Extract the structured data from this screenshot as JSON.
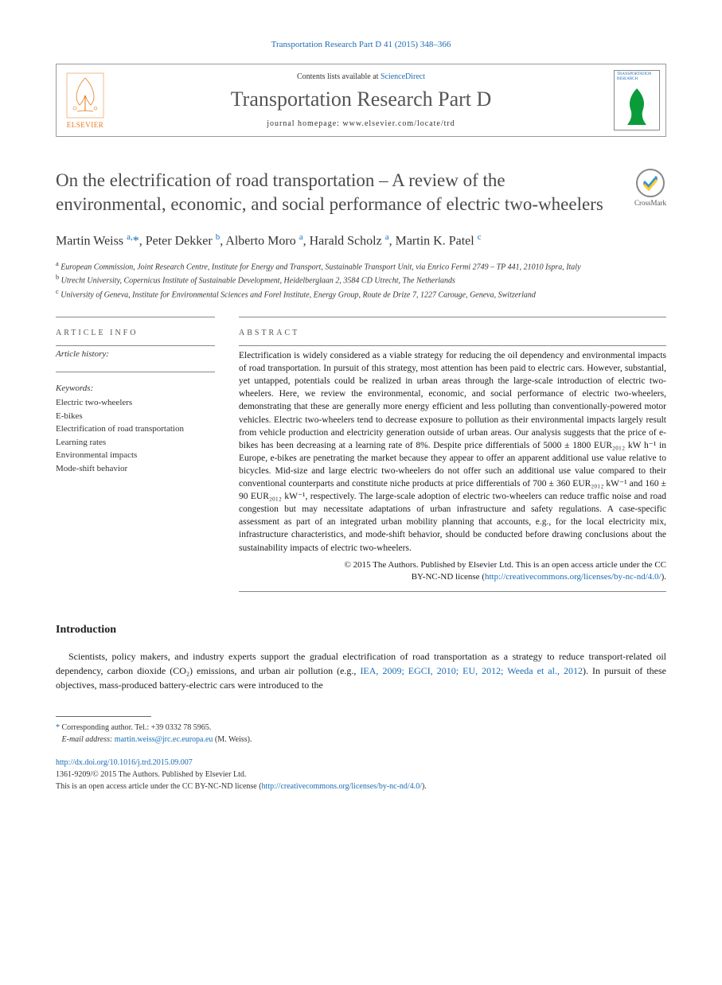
{
  "journal_ref": "Transportation Research Part D 41 (2015) 348–366",
  "header": {
    "contents_prefix": "Contents lists available at ",
    "contents_link": "ScienceDirect",
    "journal_name": "Transportation Research Part D",
    "homepage": "journal homepage: www.elsevier.com/locate/trd",
    "elsevier": "ELSEVIER",
    "cover_title": "TRANSPORTATION RESEARCH"
  },
  "crossmark": "CrossMark",
  "title": "On the electrification of road transportation – A review of the environmental, economic, and social performance of electric two-wheelers",
  "authors_html": "Martin Weiss <sup>a,</sup><span class='corr'>*</span>, Peter Dekker <sup>b</sup>, Alberto Moro <sup>a</sup>, Harald Scholz <sup>a</sup>, Martin K. Patel <sup>c</sup>",
  "affiliations": {
    "a": "European Commission, Joint Research Centre, Institute for Energy and Transport, Sustainable Transport Unit, via Enrico Fermi 2749 – TP 441, 21010 Ispra, Italy",
    "b": "Utrecht University, Copernicus Institute of Sustainable Development, Heidelberglaan 2, 3584 CD Utrecht, The Netherlands",
    "c": "University of Geneva, Institute for Environmental Sciences and Forel Institute, Energy Group, Route de Drize 7, 1227 Carouge, Geneva, Switzerland"
  },
  "labels": {
    "article_info": "article info",
    "abstract": "abstract",
    "history": "Article history:",
    "keywords": "Keywords:",
    "introduction": "Introduction"
  },
  "keywords": [
    "Electric two-wheelers",
    "E-bikes",
    "Electrification of road transportation",
    "Learning rates",
    "Environmental impacts",
    "Mode-shift behavior"
  ],
  "abstract": "Electrification is widely considered as a viable strategy for reducing the oil dependency and environmental impacts of road transportation. In pursuit of this strategy, most attention has been paid to electric cars. However, substantial, yet untapped, potentials could be realized in urban areas through the large-scale introduction of electric two-wheelers. Here, we review the environmental, economic, and social performance of electric two-wheelers, demonstrating that these are generally more energy efficient and less polluting than conventionally-powered motor vehicles. Electric two-wheelers tend to decrease exposure to pollution as their environmental impacts largely result from vehicle production and electricity generation outside of urban areas. Our analysis suggests that the price of e-bikes has been decreasing at a learning rate of 8%. Despite price differentials of 5000 ± 1800 EUR₂₀₁₂ kW h⁻¹ in Europe, e-bikes are penetrating the market because they appear to offer an apparent additional use value relative to bicycles. Mid-size and large electric two-wheelers do not offer such an additional use value compared to their conventional counterparts and constitute niche products at price differentials of 700 ± 360 EUR₂₀₁₂ kW⁻¹ and 160 ± 90 EUR₂₀₁₂ kW⁻¹, respectively. The large-scale adoption of electric two-wheelers can reduce traffic noise and road congestion but may necessitate adaptations of urban infrastructure and safety regulations. A case-specific assessment as part of an integrated urban mobility planning that accounts, e.g., for the local electricity mix, infrastructure characteristics, and mode-shift behavior, should be conducted before drawing conclusions about the sustainability impacts of electric two-wheelers.",
  "copyright": {
    "line1": "© 2015 The Authors. Published by Elsevier Ltd. This is an open access article under the CC",
    "line2_prefix": "BY-NC-ND license (",
    "line2_link": "http://creativecommons.org/licenses/by-nc-nd/4.0/",
    "line2_suffix": ")."
  },
  "intro_text_prefix": "Scientists, policy makers, and industry experts support the gradual electrification of road transportation as a strategy to reduce transport-related oil dependency, carbon dioxide (CO₂) emissions, and urban air pollution (e.g., ",
  "intro_cite": "IEA, 2009; EGCI, 2010; EU, 2012; Weeda et al., 2012",
  "intro_text_suffix": "). In pursuit of these objectives, mass-produced battery-electric cars were introduced to the",
  "footnotes": {
    "corr": "Corresponding author. Tel.: +39 0332 78 5965.",
    "email_label": "E-mail address: ",
    "email": "martin.weiss@jrc.ec.europa.eu",
    "email_suffix": " (M. Weiss)."
  },
  "doi": {
    "url": "http://dx.doi.org/10.1016/j.trd.2015.09.007",
    "issn_line": "1361-9209/© 2015 The Authors. Published by Elsevier Ltd.",
    "license_prefix": "This is an open access article under the CC BY-NC-ND license (",
    "license_link": "http://creativecommons.org/licenses/by-nc-nd/4.0/",
    "license_suffix": ")."
  },
  "colors": {
    "link": "#1a6bb5",
    "elsevier_orange": "#e67817",
    "cover_green": "#0a9b3b"
  }
}
